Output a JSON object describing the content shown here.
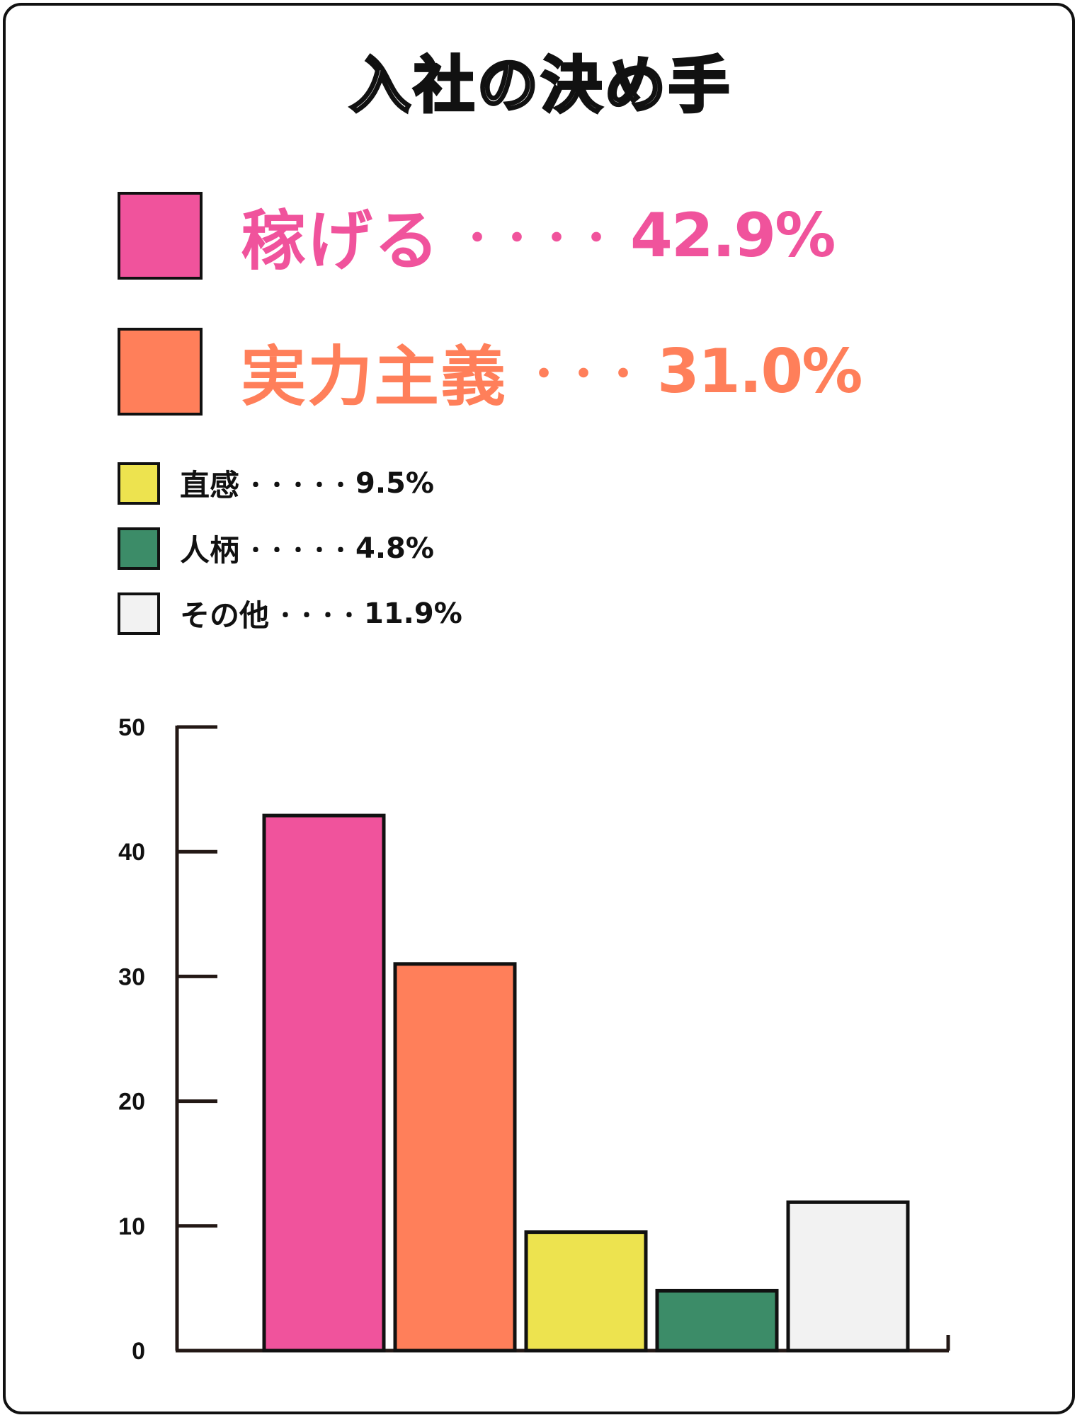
{
  "chart_data": {
    "type": "bar",
    "title": "入社の決め手",
    "categories": [
      "稼げる",
      "実力主義",
      "直感",
      "人柄",
      "その他"
    ],
    "values": [
      42.9,
      31.0,
      9.5,
      4.8,
      11.9
    ],
    "value_labels": [
      "42.9%",
      "31.0%",
      "9.5%",
      "4.8%",
      "11.9%"
    ],
    "colors": [
      "#f0539c",
      "#ff7f5a",
      "#ede34f",
      "#3c8c68",
      "#f2f2f2"
    ],
    "ylim": [
      0,
      50
    ],
    "yticks": [
      0,
      10,
      20,
      30,
      40,
      50
    ],
    "ytick_labels": [
      "0",
      "10",
      "20",
      "30",
      "40",
      "50"
    ],
    "xlabel": "",
    "ylabel": "",
    "grid": false,
    "legend_position": "top"
  },
  "legend": {
    "dots": [
      "・・・・",
      "・・・",
      "・・・・・",
      "・・・・・",
      "・・・・"
    ]
  }
}
